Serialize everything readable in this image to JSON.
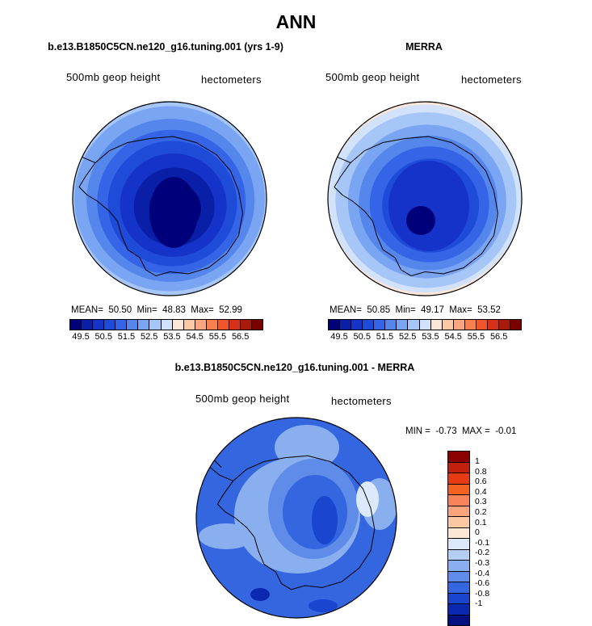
{
  "title": "ANN",
  "panels": [
    {
      "title": "b.e13.B1850C5CN.ne120_g16.tuning.001 (yrs 1-9)",
      "left_label": "500mb geop height",
      "right_label": "hectometers",
      "stats": "MEAN=  50.50  Min=  48.83  Max=  52.99"
    },
    {
      "title": "MERRA",
      "left_label": "500mb geop height",
      "right_label": "hectometers",
      "stats": "MEAN=  50.85  Min=  49.17  Max=  53.52"
    }
  ],
  "diff_panel": {
    "title": "b.e13.B1850C5CN.ne120_g16.tuning.001 - MERRA",
    "left_label": "500mb geop height",
    "right_label": "hectometers",
    "stats": "MIN =  -0.73  MAX =  -0.01"
  },
  "chart_data": [
    {
      "type": "heatmap",
      "description_type": "polar stereographic contour map",
      "title": "b.e13.B1850C5CN.ne120_g16.tuning.001 (yrs 1-9)",
      "mean": 50.5,
      "min": 48.83,
      "max": 52.99,
      "colorbar_ticks": [
        "49.5",
        "50.5",
        "51.5",
        "52.5",
        "53.5",
        "54.5",
        "55.5",
        "56.5"
      ],
      "colorbar_colors": [
        "#00007a",
        "#0a1fa8",
        "#1533c8",
        "#1f4bd9",
        "#3565e6",
        "#5586ec",
        "#7aa5f2",
        "#a6c6f7",
        "#d2e2fb",
        "#fde6d8",
        "#fcc9a8",
        "#fba680",
        "#f7804f",
        "#f0562b",
        "#d6301a",
        "#a81a0c",
        "#7a0000"
      ]
    },
    {
      "type": "heatmap",
      "description_type": "polar stereographic contour map",
      "title": "MERRA",
      "mean": 50.85,
      "min": 49.17,
      "max": 53.52,
      "colorbar_ticks": [
        "49.5",
        "50.5",
        "51.5",
        "52.5",
        "53.5",
        "54.5",
        "55.5",
        "56.5"
      ],
      "colorbar_colors": [
        "#00007a",
        "#0a1fa8",
        "#1533c8",
        "#1f4bd9",
        "#3565e6",
        "#5586ec",
        "#7aa5f2",
        "#a6c6f7",
        "#d2e2fb",
        "#fde6d8",
        "#fcc9a8",
        "#fba680",
        "#f7804f",
        "#f0562b",
        "#d6301a",
        "#a81a0c",
        "#7a0000"
      ]
    },
    {
      "type": "heatmap",
      "description_type": "polar stereographic difference contour map",
      "title": "b.e13.B1850C5CN.ne120_g16.tuning.001 - MERRA",
      "min": -0.73,
      "max": -0.01,
      "colorbar_ticks": [
        "1",
        "0.8",
        "0.6",
        "0.4",
        "0.3",
        "0.2",
        "0.1",
        "0",
        "-0.1",
        "-0.2",
        "-0.3",
        "-0.4",
        "-0.6",
        "-0.8",
        "-1"
      ],
      "colorbar_colors": [
        "#8b0000",
        "#c0200c",
        "#e63a12",
        "#f3601f",
        "#f7845a",
        "#f9a47c",
        "#fbc8a4",
        "#fde8d8",
        "#dbe9fb",
        "#b4cef5",
        "#8aafef",
        "#5e8ce8",
        "#3466e0",
        "#1a45cf",
        "#0a28b0",
        "#001080"
      ]
    }
  ]
}
